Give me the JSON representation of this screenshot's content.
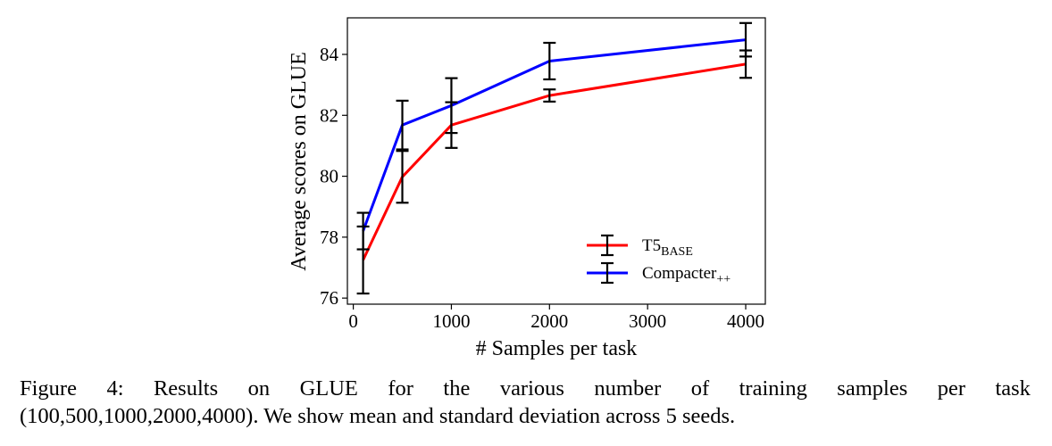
{
  "chart_data": {
    "type": "line",
    "xlabel": "# Samples per task",
    "ylabel": "Average scores on GLUE",
    "xlim": [
      -60,
      4200
    ],
    "ylim": [
      75.8,
      85.2
    ],
    "xticks": [
      0,
      1000,
      2000,
      3000,
      4000
    ],
    "yticks": [
      76,
      78,
      80,
      82,
      84
    ],
    "grid": false,
    "legend_position": "lower-right",
    "series": [
      {
        "name": "T5",
        "name_sub": "BASE",
        "color": "#ff0000",
        "x": [
          100,
          500,
          1000,
          2000,
          4000
        ],
        "y": [
          77.25,
          79.98,
          81.68,
          82.65,
          83.68
        ],
        "err": [
          1.1,
          0.85,
          0.75,
          0.2,
          0.45
        ]
      },
      {
        "name": "Compacter",
        "name_sub": "++",
        "color": "#0000ff",
        "x": [
          100,
          500,
          1000,
          2000,
          4000
        ],
        "y": [
          78.2,
          81.68,
          82.32,
          83.78,
          84.48
        ],
        "err": [
          0.6,
          0.8,
          0.9,
          0.6,
          0.55
        ]
      }
    ]
  },
  "caption": {
    "line1_words": [
      "Figure",
      "4:",
      "Results",
      "on",
      "GLUE",
      "for",
      "the",
      "various",
      "number",
      "of",
      "training",
      "samples",
      "per",
      "task"
    ],
    "line2": "(100,500,1000,2000,4000). We show mean and standard deviation across 5 seeds."
  }
}
